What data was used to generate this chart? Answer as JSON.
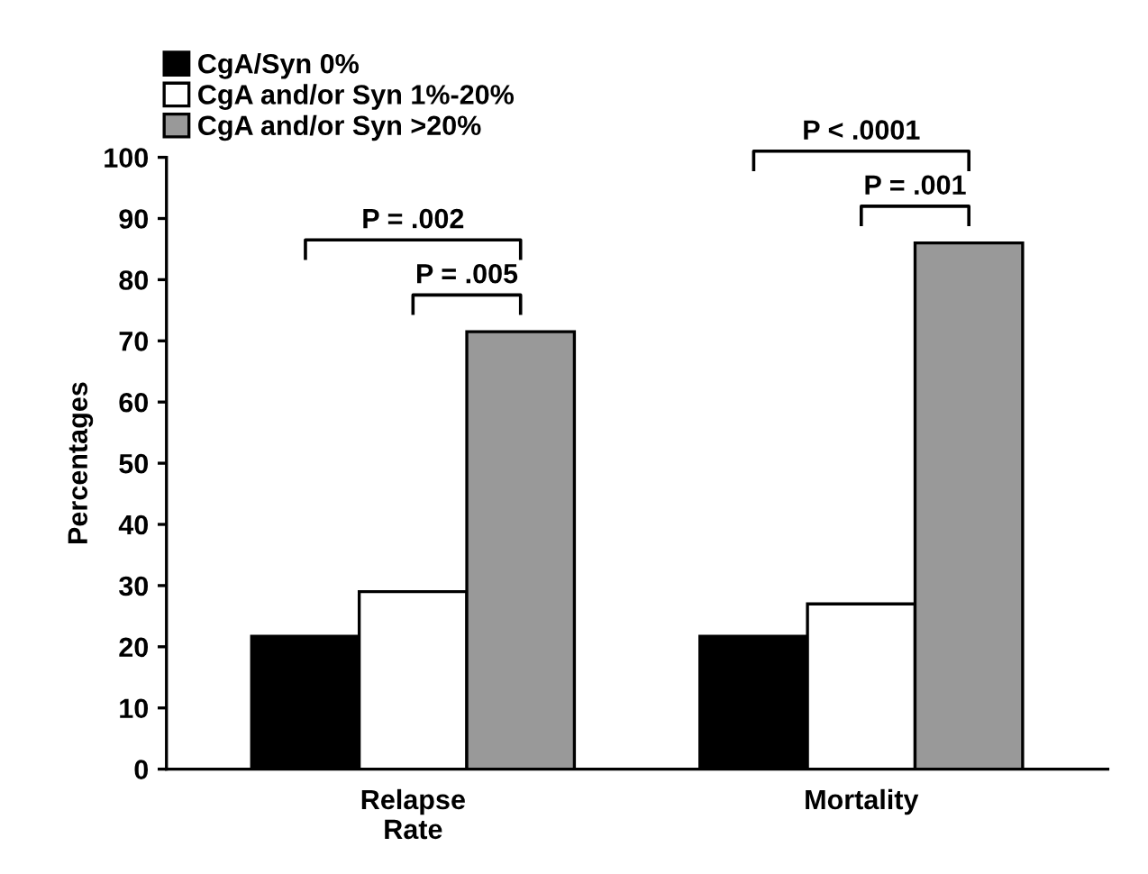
{
  "chart_data": {
    "type": "bar",
    "ylabel": "Percentages",
    "categories": [
      "Relapse\nRate",
      "Mortality"
    ],
    "series": [
      {
        "name": "CgA/Syn 0%",
        "color": "#000000",
        "values": [
          21.7,
          21.7
        ]
      },
      {
        "name": "CgA and/or Syn 1%-20%",
        "color": "#ffffff",
        "values": [
          29,
          27
        ]
      },
      {
        "name": "CgA and/or Syn >20%",
        "color": "#999999",
        "values": [
          71.5,
          86
        ]
      }
    ],
    "ylim": [
      0,
      100
    ],
    "yticks": [
      0,
      10,
      20,
      30,
      40,
      50,
      60,
      70,
      80,
      90,
      100
    ],
    "annotations": [
      "P = .002",
      "P = .005",
      "P < .0001",
      "P = .001"
    ],
    "legend": "top left",
    "grid": false
  }
}
